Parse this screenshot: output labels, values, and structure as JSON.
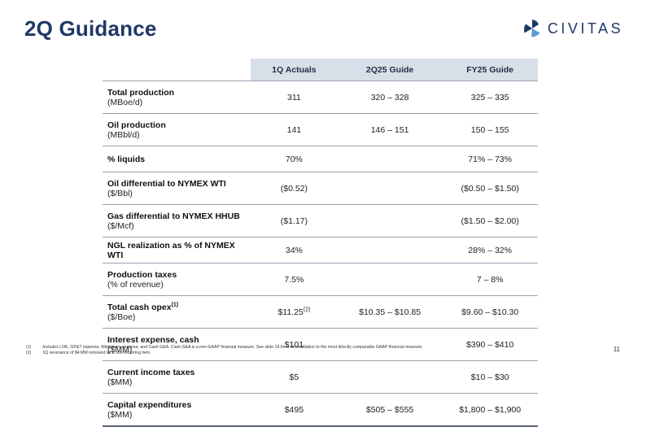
{
  "slide": {
    "title": "2Q Guidance",
    "page_number": "11"
  },
  "logo": {
    "text": "CIVITAS",
    "icon": "civitas-tri-wing-icon",
    "colors": {
      "dark": "#1f3864",
      "light": "#5b9bd5"
    }
  },
  "table": {
    "headers": [
      "",
      "1Q Actuals",
      "2Q25 Guide",
      "FY25 Guide"
    ],
    "rows": [
      {
        "name": "Total production",
        "unit": "(MBoe/d)",
        "note": "",
        "q1": "311",
        "q1_note": "",
        "q2": "320 – 328",
        "fy": "325 – 335"
      },
      {
        "name": "Oil production",
        "unit": "(MBbl/d)",
        "note": "",
        "q1": "141",
        "q1_note": "",
        "q2": "146 – 151",
        "fy": "150 – 155"
      },
      {
        "name": "% liquids",
        "unit": "",
        "note": "",
        "q1": "70%",
        "q1_note": "",
        "q2": "",
        "fy": "71% – 73%"
      },
      {
        "name": "Oil differential to NYMEX WTI",
        "unit": "($/Bbl)",
        "note": "",
        "q1": "($0.52)",
        "q1_note": "",
        "q2": "",
        "fy": "($0.50 – $1.50)"
      },
      {
        "name": "Gas differential to NYMEX HHUB",
        "unit": "($/Mcf)",
        "note": "",
        "q1": "($1.17)",
        "q1_note": "",
        "q2": "",
        "fy": "($1.50 – $2.00)"
      },
      {
        "name": "NGL realization as % of NYMEX WTI",
        "unit": "",
        "note": "",
        "q1": "34%",
        "q1_note": "",
        "q2": "",
        "fy": "28% – 32%"
      },
      {
        "name": "Production taxes",
        "unit": "(% of revenue)",
        "note": "",
        "q1": "7.5%",
        "q1_note": "",
        "q2": "",
        "fy": "7 – 8%"
      },
      {
        "name": "Total cash opex",
        "unit": "($/Boe)",
        "note": "(1)",
        "q1": "$11.25",
        "q1_note": "(2)",
        "q2": "$10.35 – $10.85",
        "fy": "$9.60 – $10.30"
      },
      {
        "name": "Interest expense, cash",
        "unit": "($MM)",
        "note": "",
        "q1": "$101",
        "q1_note": "",
        "q2": "",
        "fy": "$390 – $410"
      },
      {
        "name": "Current income taxes",
        "unit": "($MM)",
        "note": "",
        "q1": "$5",
        "q1_note": "",
        "q2": "",
        "fy": "$10 – $30"
      },
      {
        "name": "Capital expenditures",
        "unit": "($MM)",
        "note": "",
        "q1": "$495",
        "q1_note": "",
        "q2": "$505 – $555",
        "fy": "$1,800 – $1,900"
      }
    ]
  },
  "footnotes": [
    {
      "marker": "(1)",
      "text": "Includes LOE, GP&T expense, Midstream expense, and Cash G&A. Cash G&A is a non-GAAP financial measure. See slide 19 for a reconciliation to the most directly comparable GAAP financial measure."
    },
    {
      "marker": "(2)",
      "text": "1Q severance of $4 MM removed as a non-recurring item."
    }
  ]
}
